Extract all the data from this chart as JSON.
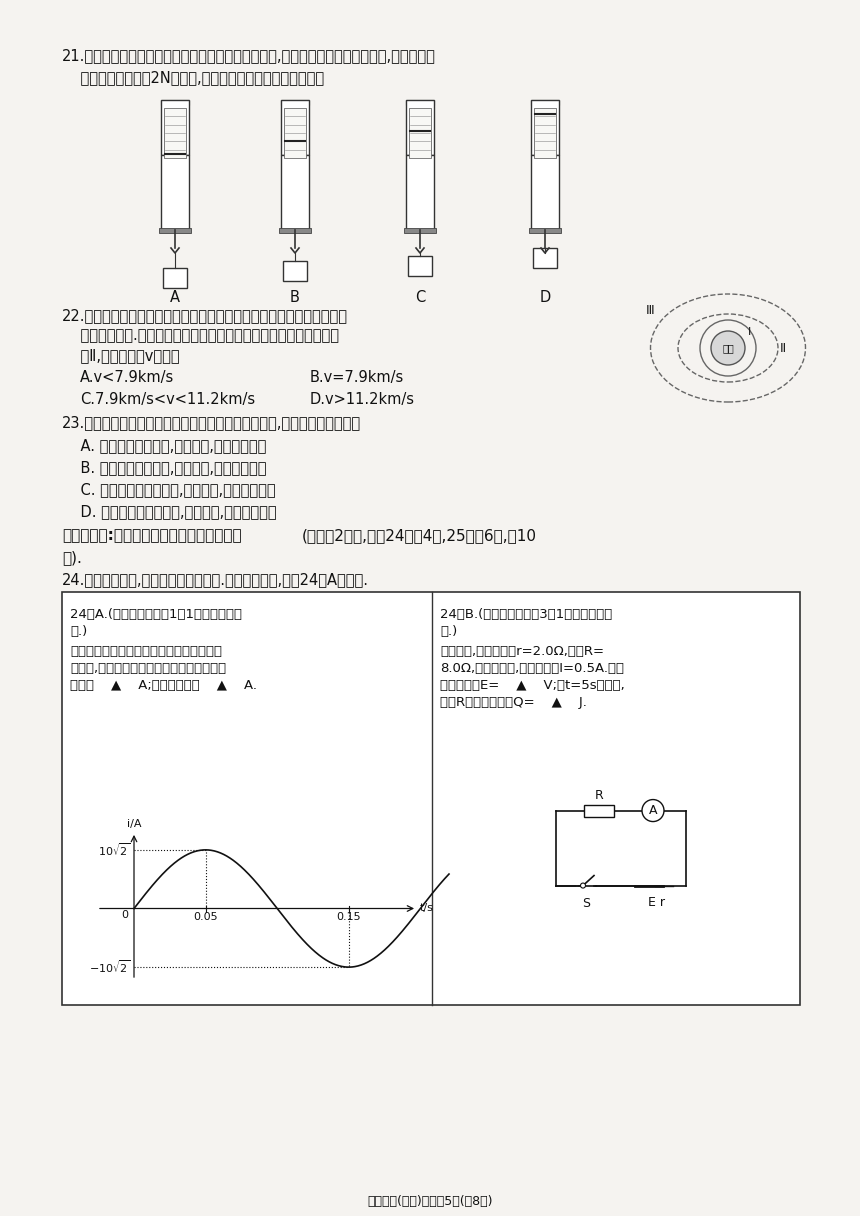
{
  "bg_color": "#f0eeeb",
  "text_color": "#111111",
  "page_bg": "#f5f3f0",
  "title_footer": "高二物理(必修)试卷第5页(共8页)",
  "q21_line1": "21.可重复使用返回式卫星返回地球着地前竖直减速时,在卫星中悬挂一弹簧测力计,弹簧测力计",
  "q21_line2": "    的秤钩上挂一个重2N的物体,弹簧测力计示数可能是下图中的",
  "q22_line1": "22.长十一火箭主要针对太阳同步轨道单星、多星、星座组网和补网提供",
  "q22_line2": "    快速发射服务.若某次发射卫星时要将卫星直接送入绕地球的椭圆轨",
  "q22_line3": "    道Ⅱ,其发射速度v应满足",
  "q22_optA": "A.v<7.9km/s",
  "q22_optB": "B.v=7.9km/s",
  "q22_optC": "C.7.9km/s<v<11.2km/s",
  "q22_optD": "D.v>11.2km/s",
  "q23_line1": "23.可重复使用返回式卫星返回地球落地前减速过程中,下列说法中正确的是",
  "q23_optA": "    A. 卫星的机械能守恒,动能增加,重力势能减少",
  "q23_optB": "    B. 卫星的机械能守恒,动能减少,重力势能增加",
  "q23_optC": "    C. 卫星的机械能不守恒,动能增加,重力势能减少",
  "q23_optD": "    D. 卫星的机械能不守恒,动能减少,重力势能减少",
  "sec2_line1": "二、填空题:把答案填在答题卡相应的横线上(本部分2小题,其中24小题4分,25小题6分,共10",
  "sec2_line2": "分).",
  "q24_intro": "24.本题为选做题,考生只选择一题作答.若两题都作答,则按24－A题计分.",
  "cellA_t1": "24－A.(本题供使用选修1－1教材的考生作",
  "cellA_t2": "答.)",
  "cellA_l1": "如图所示是一个按正弦规律变化的交变电流",
  "cellA_l2": "的图象,根据图象可知该正弦交变电流的电流",
  "cellA_l3": "峰值是    ▲    A;电流有效值是    ▲    A.",
  "cellB_t1": "24－B.(本题供使用选修3－1教材的考生作",
  "cellB_t2": "答.)",
  "cellB_l1": "如图所示,电源的内阻r=2.0Ω,电阻R=",
  "cellB_l2": "8.0Ω,开关闭合后,电流表示数I=0.5A.则电",
  "cellB_l3": "源的电动势E=    ▲    V;在t=5s时间内,",
  "cellB_l4": "电阻R产生的焦耳热Q=    ▲    J."
}
